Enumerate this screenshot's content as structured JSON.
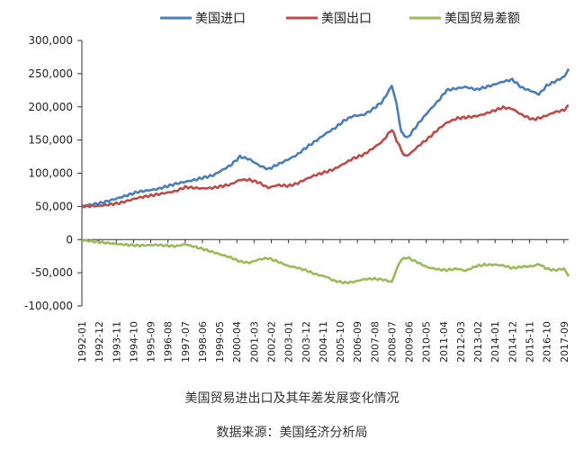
{
  "chart_data": {
    "type": "line",
    "title": "",
    "xlabel": "",
    "ylabel": "",
    "ylim": [
      -100000,
      300000
    ],
    "y_ticks": [
      300000,
      250000,
      200000,
      150000,
      100000,
      50000,
      0,
      -50000,
      -100000
    ],
    "y_tick_labels": [
      "300,000",
      "250,000",
      "200,000",
      "150,000",
      "100,000",
      "50,000",
      "0",
      "-50,000",
      "-100,000"
    ],
    "x_range": [
      "1992-01",
      "2017-12"
    ],
    "x_tick_labels": [
      "1992-01",
      "1992-12",
      "1993-11",
      "1994-10",
      "1995-09",
      "1996-08",
      "1997-07",
      "1998-06",
      "1999-05",
      "2000-04",
      "2001-03",
      "2002-02",
      "2003-01",
      "2003-12",
      "2004-11",
      "2005-10",
      "2006-09",
      "2007-08",
      "2008-07",
      "2009-06",
      "2010-05",
      "2011-04",
      "2012-03",
      "2013-02",
      "2014-01",
      "2014-12",
      "2015-11",
      "2016-10",
      "2017-09"
    ],
    "legend_position": "top",
    "series": [
      {
        "name": "美国进口",
        "color": "#4a7ebb",
        "points": [
          [
            "1992-01",
            50000
          ],
          [
            "1993-01",
            55000
          ],
          [
            "1994-01",
            63000
          ],
          [
            "1995-01",
            72000
          ],
          [
            "1996-01",
            76000
          ],
          [
            "1997-01",
            84000
          ],
          [
            "1998-01",
            90000
          ],
          [
            "1999-01",
            97000
          ],
          [
            "1999-12",
            112000
          ],
          [
            "2000-06",
            125000
          ],
          [
            "2000-12",
            121000
          ],
          [
            "2001-06",
            112000
          ],
          [
            "2001-12",
            106000
          ],
          [
            "2002-06",
            113000
          ],
          [
            "2003-01",
            121000
          ],
          [
            "2003-06",
            127000
          ],
          [
            "2004-01",
            140000
          ],
          [
            "2004-06",
            148000
          ],
          [
            "2005-01",
            160000
          ],
          [
            "2005-06",
            167000
          ],
          [
            "2006-01",
            180000
          ],
          [
            "2006-06",
            186000
          ],
          [
            "2007-01",
            188000
          ],
          [
            "2007-06",
            195000
          ],
          [
            "2008-01",
            208000
          ],
          [
            "2008-07",
            232000
          ],
          [
            "2008-10",
            205000
          ],
          [
            "2009-01",
            162000
          ],
          [
            "2009-05",
            153000
          ],
          [
            "2009-12",
            175000
          ],
          [
            "2010-06",
            192000
          ],
          [
            "2011-01",
            210000
          ],
          [
            "2011-06",
            225000
          ],
          [
            "2012-01",
            228000
          ],
          [
            "2012-06",
            230000
          ],
          [
            "2013-01",
            226000
          ],
          [
            "2013-06",
            229000
          ],
          [
            "2014-01",
            234000
          ],
          [
            "2014-06",
            238000
          ],
          [
            "2014-12",
            241000
          ],
          [
            "2015-06",
            229000
          ],
          [
            "2016-01",
            223000
          ],
          [
            "2016-05",
            219000
          ],
          [
            "2016-10",
            232000
          ],
          [
            "2017-03",
            238000
          ],
          [
            "2017-09",
            245000
          ],
          [
            "2017-12",
            257000
          ]
        ]
      },
      {
        "name": "美国出口",
        "color": "#be4b48",
        "points": [
          [
            "1992-01",
            50000
          ],
          [
            "1993-01",
            51000
          ],
          [
            "1994-01",
            55000
          ],
          [
            "1995-01",
            63000
          ],
          [
            "1996-01",
            68000
          ],
          [
            "1997-01",
            73000
          ],
          [
            "1997-07",
            79000
          ],
          [
            "1998-06",
            77000
          ],
          [
            "1999-01",
            78000
          ],
          [
            "1999-12",
            83000
          ],
          [
            "2000-06",
            90000
          ],
          [
            "2000-12",
            90000
          ],
          [
            "2001-06",
            86000
          ],
          [
            "2001-12",
            78000
          ],
          [
            "2002-06",
            82000
          ],
          [
            "2003-01",
            81000
          ],
          [
            "2003-06",
            84000
          ],
          [
            "2004-01",
            92000
          ],
          [
            "2004-06",
            97000
          ],
          [
            "2005-01",
            102000
          ],
          [
            "2005-06",
            106000
          ],
          [
            "2006-01",
            115000
          ],
          [
            "2006-06",
            122000
          ],
          [
            "2007-01",
            128000
          ],
          [
            "2007-06",
            136000
          ],
          [
            "2008-01",
            148000
          ],
          [
            "2008-07",
            166000
          ],
          [
            "2008-11",
            145000
          ],
          [
            "2009-03",
            126000
          ],
          [
            "2009-06",
            128000
          ],
          [
            "2010-01",
            143000
          ],
          [
            "2010-06",
            152000
          ],
          [
            "2011-01",
            167000
          ],
          [
            "2011-06",
            176000
          ],
          [
            "2012-01",
            183000
          ],
          [
            "2012-06",
            184000
          ],
          [
            "2013-01",
            186000
          ],
          [
            "2013-06",
            189000
          ],
          [
            "2014-01",
            195000
          ],
          [
            "2014-06",
            199000
          ],
          [
            "2014-12",
            197000
          ],
          [
            "2015-06",
            188000
          ],
          [
            "2016-01",
            181000
          ],
          [
            "2016-05",
            183000
          ],
          [
            "2016-10",
            187000
          ],
          [
            "2017-03",
            192000
          ],
          [
            "2017-09",
            195000
          ],
          [
            "2017-12",
            202000
          ]
        ]
      },
      {
        "name": "美国贸易差额",
        "color": "#9bbb59",
        "points": [
          [
            "1992-01",
            -1000
          ],
          [
            "1993-01",
            -4000
          ],
          [
            "1994-01",
            -7000
          ],
          [
            "1995-01",
            -9000
          ],
          [
            "1996-01",
            -8000
          ],
          [
            "1997-01",
            -10000
          ],
          [
            "1997-07",
            -7000
          ],
          [
            "1998-06",
            -14000
          ],
          [
            "1999-01",
            -19000
          ],
          [
            "1999-12",
            -27000
          ],
          [
            "2000-06",
            -33000
          ],
          [
            "2000-12",
            -35000
          ],
          [
            "2001-06",
            -30000
          ],
          [
            "2001-12",
            -28000
          ],
          [
            "2002-06",
            -33000
          ],
          [
            "2003-01",
            -40000
          ],
          [
            "2003-06",
            -42000
          ],
          [
            "2004-01",
            -47000
          ],
          [
            "2004-06",
            -52000
          ],
          [
            "2005-01",
            -56000
          ],
          [
            "2005-06",
            -62000
          ],
          [
            "2006-01",
            -65000
          ],
          [
            "2006-06",
            -64000
          ],
          [
            "2007-01",
            -60000
          ],
          [
            "2007-06",
            -59000
          ],
          [
            "2008-01",
            -60000
          ],
          [
            "2008-07",
            -64000
          ],
          [
            "2008-10",
            -45000
          ],
          [
            "2009-01",
            -30000
          ],
          [
            "2009-05",
            -27000
          ],
          [
            "2009-12",
            -35000
          ],
          [
            "2010-06",
            -42000
          ],
          [
            "2011-01",
            -45000
          ],
          [
            "2011-06",
            -46000
          ],
          [
            "2012-01",
            -44000
          ],
          [
            "2012-06",
            -47000
          ],
          [
            "2013-01",
            -40000
          ],
          [
            "2013-06",
            -38000
          ],
          [
            "2014-01",
            -38000
          ],
          [
            "2014-06",
            -39000
          ],
          [
            "2014-12",
            -43000
          ],
          [
            "2015-06",
            -41000
          ],
          [
            "2016-01",
            -40000
          ],
          [
            "2016-05",
            -37000
          ],
          [
            "2016-10",
            -44000
          ],
          [
            "2017-03",
            -46000
          ],
          [
            "2017-09",
            -44000
          ],
          [
            "2017-12",
            -55000
          ]
        ]
      }
    ]
  },
  "captions": {
    "title": "美国贸易进出口及其年差发展变化情况",
    "source": "数据来源：美国经济分析局"
  }
}
